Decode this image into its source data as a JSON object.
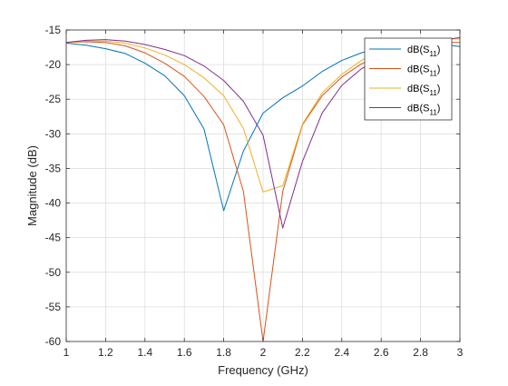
{
  "chart_data": {
    "type": "line",
    "xlabel": "Frequency (GHz)",
    "ylabel": "Magnitude (dB)",
    "xlim": [
      1,
      3
    ],
    "ylim": [
      -60,
      -15
    ],
    "xticks": [
      "1",
      "1.2",
      "1.4",
      "1.6",
      "1.8",
      "2",
      "2.2",
      "2.4",
      "2.6",
      "2.8",
      "3"
    ],
    "yticks": [
      "-15",
      "-20",
      "-25",
      "-30",
      "-35",
      "-40",
      "-45",
      "-50",
      "-55",
      "-60"
    ],
    "grid": true,
    "legend_position": "top-right",
    "series": [
      {
        "name_main": "dB(S",
        "name_sub": "11",
        "name_close": ")",
        "color": "#0072BD",
        "x": [
          1.0,
          1.1,
          1.2,
          1.3,
          1.4,
          1.5,
          1.6,
          1.7,
          1.8,
          1.9,
          2.0,
          2.1,
          2.2,
          2.3,
          2.4,
          2.5,
          2.6,
          2.7,
          2.8,
          2.9,
          3.0
        ],
        "y": [
          -16.9,
          -17.2,
          -17.7,
          -18.4,
          -19.8,
          -21.6,
          -24.5,
          -29.3,
          -41.1,
          -32.5,
          -27.0,
          -24.8,
          -23.1,
          -21.0,
          -19.4,
          -18.3,
          -17.6,
          -17.2,
          -17.0,
          -17.0,
          -17.4
        ]
      },
      {
        "name_main": "dB(S",
        "name_sub": "11",
        "name_close": ")",
        "color": "#D95319",
        "x": [
          1.0,
          1.1,
          1.2,
          1.3,
          1.4,
          1.5,
          1.6,
          1.7,
          1.8,
          1.9,
          2.0,
          2.1,
          2.2,
          2.3,
          2.4,
          2.5,
          2.6,
          2.7,
          2.8,
          2.9,
          3.0
        ],
        "y": [
          -16.8,
          -16.7,
          -16.8,
          -17.3,
          -18.3,
          -19.8,
          -21.7,
          -24.6,
          -28.7,
          -38.3,
          -60.0,
          -38.3,
          -28.7,
          -24.5,
          -21.8,
          -19.9,
          -18.6,
          -17.7,
          -17.1,
          -16.8,
          -16.8
        ]
      },
      {
        "name_main": "dB(S",
        "name_sub": "11",
        "name_close": ")",
        "color": "#EDB120",
        "x": [
          1.0,
          1.1,
          1.2,
          1.3,
          1.4,
          1.5,
          1.6,
          1.7,
          1.8,
          1.9,
          2.0,
          2.1,
          2.2,
          2.3,
          2.4,
          2.5,
          2.6,
          2.7,
          2.8,
          2.9,
          3.0
        ],
        "y": [
          -16.8,
          -16.6,
          -16.6,
          -16.9,
          -17.6,
          -18.6,
          -20.0,
          -21.9,
          -24.5,
          -29.2,
          -38.4,
          -37.5,
          -28.6,
          -24.1,
          -21.4,
          -19.4,
          -18.0,
          -17.1,
          -16.6,
          -16.3,
          -16.3
        ]
      },
      {
        "name_main": "dB(S",
        "name_sub": "11",
        "name_close": ")",
        "color": "#7E2F8E",
        "x": [
          1.0,
          1.1,
          1.2,
          1.3,
          1.4,
          1.5,
          1.6,
          1.7,
          1.8,
          1.9,
          2.0,
          2.1,
          2.2,
          2.3,
          2.4,
          2.5,
          2.6,
          2.7,
          2.8,
          2.9,
          3.0
        ],
        "y": [
          -16.8,
          -16.5,
          -16.4,
          -16.6,
          -17.1,
          -17.8,
          -18.7,
          -20.2,
          -22.3,
          -25.3,
          -30.2,
          -43.6,
          -34.0,
          -27.0,
          -23.0,
          -20.6,
          -19.0,
          -17.9,
          -17.1,
          -16.5,
          -16.1
        ]
      }
    ]
  }
}
